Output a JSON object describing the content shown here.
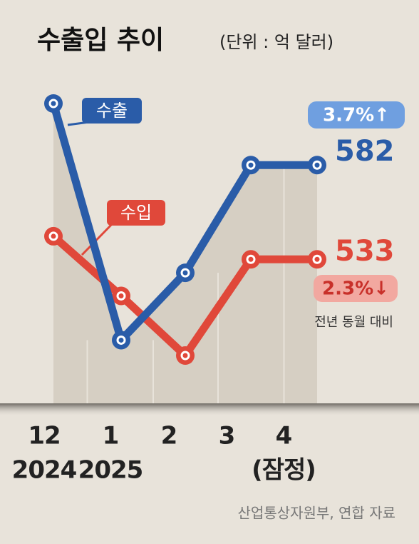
{
  "chart_data": {
    "type": "line",
    "title": "수출입 추이",
    "subtitle": "(단위 : 억 달러)",
    "categories": [
      [
        "12",
        "2024"
      ],
      [
        "1",
        "2025"
      ],
      [
        "2"
      ],
      [
        "3"
      ],
      [
        "4",
        "(잠정)"
      ]
    ],
    "series": [
      {
        "name": "수출",
        "color": "#2a5ca8",
        "values": [
          614,
          491,
          526,
          582,
          582
        ]
      },
      {
        "name": "수입",
        "color": "#e0483a",
        "values": [
          545,
          514,
          483,
          533,
          533
        ]
      }
    ],
    "annotations": {
      "export_change": "3.7%↑",
      "import_change": "2.3%↓",
      "change_note": "전년 동월 대비"
    },
    "source": "산업통상자원부, 연합 자료"
  }
}
